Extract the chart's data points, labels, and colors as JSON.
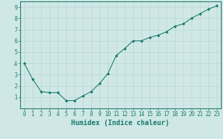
{
  "x": [
    0,
    1,
    2,
    3,
    4,
    5,
    6,
    7,
    8,
    9,
    10,
    11,
    12,
    13,
    14,
    15,
    16,
    17,
    18,
    19,
    20,
    21,
    22,
    23
  ],
  "y": [
    4.0,
    2.6,
    1.5,
    1.4,
    1.4,
    0.7,
    0.7,
    1.1,
    1.5,
    2.2,
    3.1,
    4.7,
    5.3,
    6.0,
    6.0,
    6.3,
    6.5,
    6.8,
    7.3,
    7.5,
    8.0,
    8.4,
    8.8,
    9.1
  ],
  "line_color": "#1a7a6e",
  "marker": "D",
  "marker_size": 2.0,
  "bg_color": "#cfe8e6",
  "grid_major_color": "#b8d4d2",
  "grid_minor_color": "#d8eceb",
  "xlabel": "Humidex (Indice chaleur)",
  "xlim": [
    -0.5,
    23.5
  ],
  "ylim": [
    0,
    9.5
  ],
  "yticks": [
    1,
    2,
    3,
    4,
    5,
    6,
    7,
    8,
    9
  ],
  "xticks": [
    0,
    1,
    2,
    3,
    4,
    5,
    6,
    7,
    8,
    9,
    10,
    11,
    12,
    13,
    14,
    15,
    16,
    17,
    18,
    19,
    20,
    21,
    22,
    23
  ],
  "tick_color": "#1a7a6e",
  "label_fontsize": 5.5,
  "xlabel_fontsize": 7,
  "xlabel_color": "#1a7a6e",
  "axis_color": "#1a7a6e",
  "spine_color": "#1a7a6e"
}
